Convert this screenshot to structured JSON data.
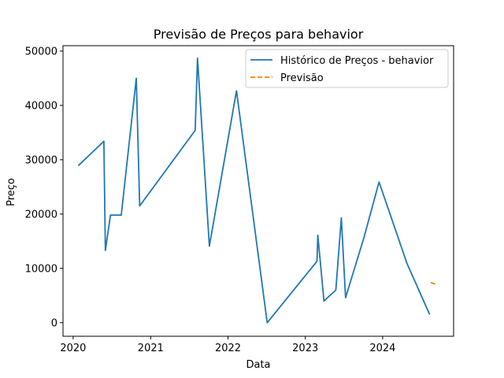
{
  "chart_data": {
    "type": "line",
    "title": "Previsão de Preços para behavior",
    "xlabel": "Data",
    "ylabel": "Preço",
    "x_ticks": [
      "2020",
      "2021",
      "2022",
      "2023",
      "2024"
    ],
    "y_ticks": [
      "0",
      "10000",
      "20000",
      "30000",
      "40000",
      "50000"
    ],
    "xlim": [
      "2019-11-14",
      "2024-12-01"
    ],
    "ylim": [
      -2500,
      51000
    ],
    "grid": false,
    "legend_position": "upper right",
    "series": [
      {
        "name": "Histórico de Preços - behavior",
        "color": "#1f77b4",
        "style": "solid",
        "points": [
          [
            "2020-01-25",
            28900
          ],
          [
            "2020-05-25",
            33400
          ],
          [
            "2020-06-01",
            13300
          ],
          [
            "2020-06-25",
            19800
          ],
          [
            "2020-08-15",
            19800
          ],
          [
            "2020-10-25",
            45000
          ],
          [
            "2020-11-10",
            21500
          ],
          [
            "2021-07-30",
            35400
          ],
          [
            "2021-08-10",
            48700
          ],
          [
            "2021-10-05",
            14100
          ],
          [
            "2022-02-10",
            42700
          ],
          [
            "2022-07-05",
            0
          ],
          [
            "2023-02-25",
            11300
          ],
          [
            "2023-03-01",
            16100
          ],
          [
            "2023-03-30",
            4000
          ],
          [
            "2023-05-25",
            6000
          ],
          [
            "2023-06-20",
            19300
          ],
          [
            "2023-07-10",
            4600
          ],
          [
            "2023-10-05",
            15700
          ],
          [
            "2023-12-15",
            25900
          ],
          [
            "2024-04-25",
            10900
          ],
          [
            "2024-08-10",
            1500
          ]
        ]
      },
      {
        "name": "Previsão",
        "color": "#ff7f0e",
        "style": "dashed",
        "points": [
          [
            "2024-08-15",
            7400
          ],
          [
            "2024-08-30",
            7200
          ],
          [
            "2024-09-10",
            7000
          ]
        ]
      }
    ]
  }
}
